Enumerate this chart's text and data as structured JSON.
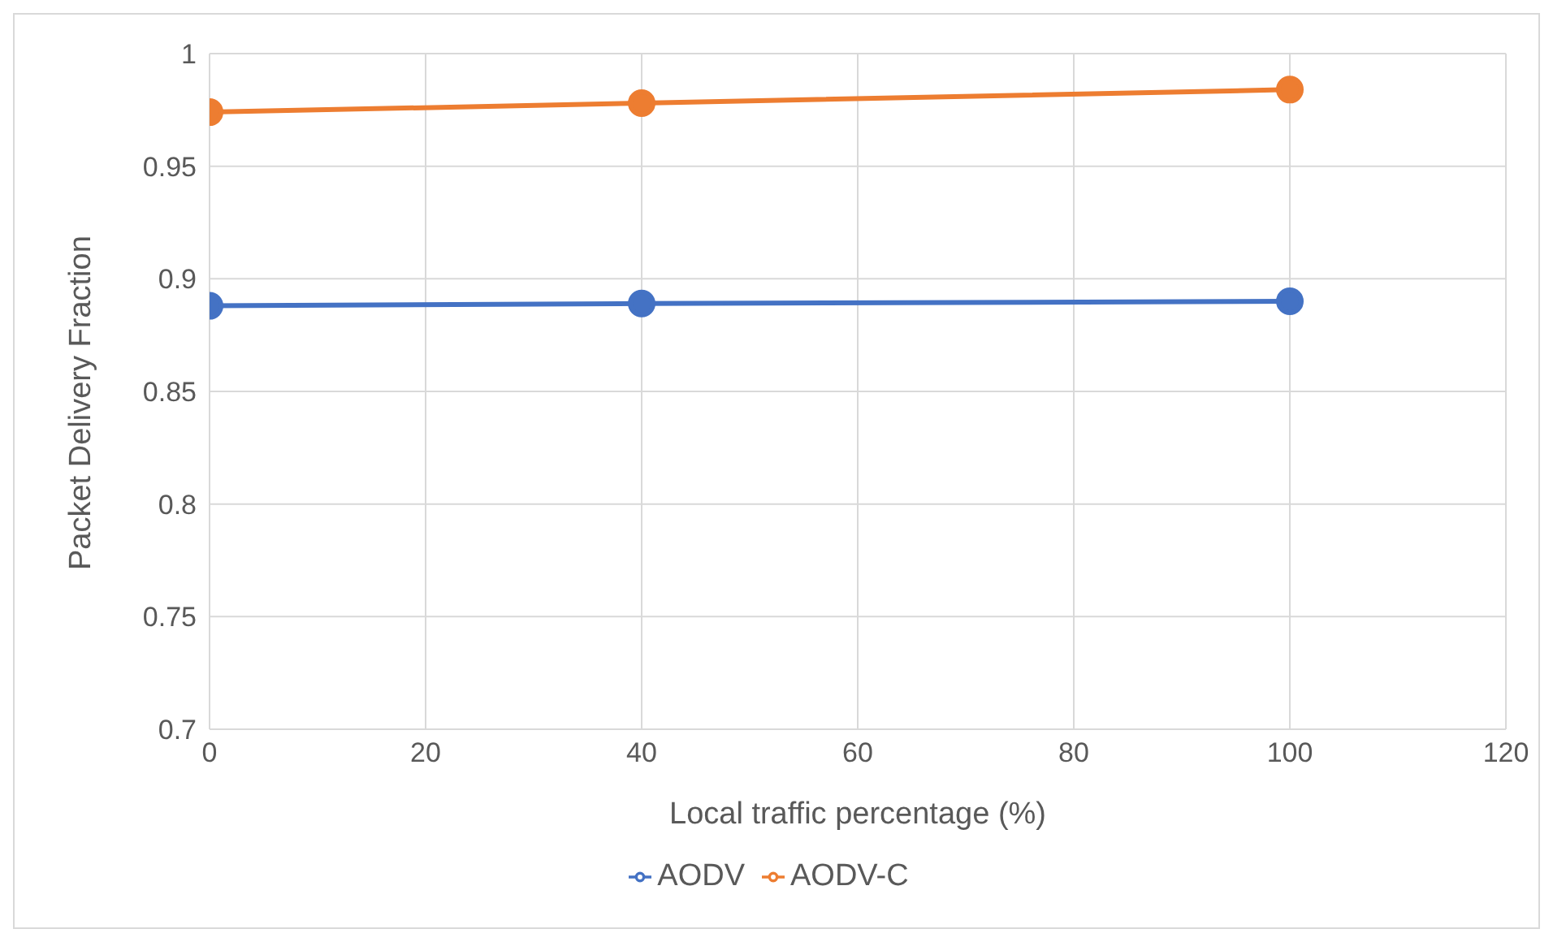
{
  "chart_data": {
    "type": "line",
    "xlabel": "Local traffic percentage (%)",
    "ylabel": "Packet Delivery Fraction",
    "x": [
      0,
      40,
      100
    ],
    "series": [
      {
        "name": "AODV",
        "color": "#4472c4",
        "values": [
          0.888,
          0.889,
          0.89
        ]
      },
      {
        "name": "AODV-C",
        "color": "#ed7d31",
        "values": [
          0.974,
          0.978,
          0.984
        ]
      }
    ],
    "xlim": [
      0,
      120
    ],
    "xticks": [
      0,
      20,
      40,
      60,
      80,
      100,
      120
    ],
    "ylim": [
      0.7,
      1
    ],
    "yticks": [
      0.7,
      0.75,
      0.8,
      0.85,
      0.9,
      0.95,
      1
    ],
    "grid": true,
    "legend": "bottom",
    "marker": "circle",
    "line_style": "solid"
  }
}
